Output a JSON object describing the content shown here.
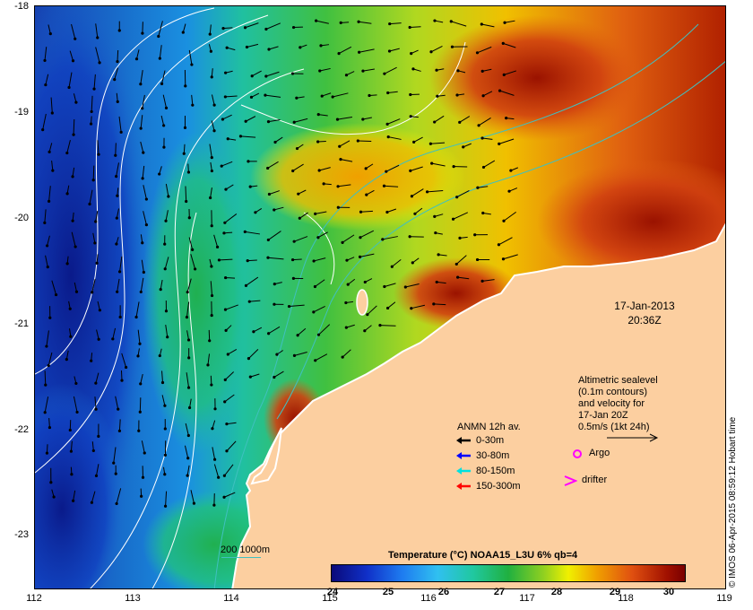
{
  "axes": {
    "lat_labels": [
      "-18",
      "-19",
      "-20",
      "-21",
      "-22",
      "-23"
    ],
    "lon_labels": [
      "112",
      "113",
      "114",
      "115",
      "116",
      "117",
      "118",
      "119"
    ],
    "lon_range": [
      112,
      119
    ],
    "lat_range": [
      -23.5,
      -18
    ]
  },
  "timestamp": {
    "date": "17-Jan-2013",
    "time": "20:36Z"
  },
  "altimetry_note": {
    "line1": "Altimetric sealevel",
    "line2": "(0.1m contours)",
    "line3": "and velocity for",
    "line4": "17-Jan 20Z",
    "scale_label": "0.5m/s (1kt 24h)"
  },
  "anmn_legend": {
    "title": "ANMN 12h av.",
    "items": [
      {
        "label": "0-30m",
        "color": "#000000"
      },
      {
        "label": "30-80m",
        "color": "#0000ff"
      },
      {
        "label": "80-150m",
        "color": "#00e0e0"
      },
      {
        "label": "150-300m",
        "color": "#ff0000"
      }
    ]
  },
  "markers": {
    "argo": {
      "label": "Argo",
      "color": "#ff00ff"
    },
    "drifter": {
      "label": "drifter",
      "color": "#ff00ff"
    }
  },
  "isobath": {
    "label": "200  1000m",
    "color": "#40c0c0"
  },
  "colorbar": {
    "title": "Temperature (°C) NOAA15_L3U 6% qb=4",
    "ticks": [
      "24",
      "25",
      "26",
      "27",
      "28",
      "29",
      "30"
    ],
    "colors": {
      "cold": "#0a0a7a",
      "warm": "#7a0000"
    }
  },
  "credit": "© IMOS 06-Apr-2015 08:59:12 Hobart time",
  "colors": {
    "land": "#fccfa0",
    "contour": "#ffffff"
  }
}
